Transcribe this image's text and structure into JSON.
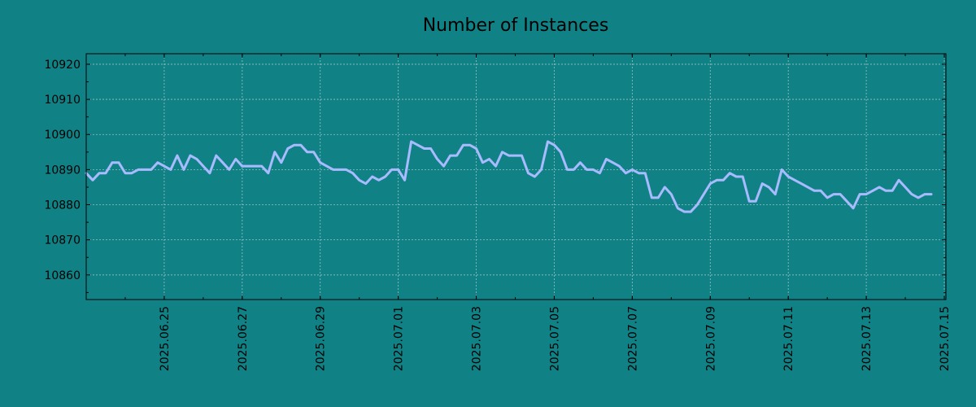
{
  "colors": {
    "background": "#108286",
    "series": "#a9bbff",
    "grid": "#bfd9da"
  },
  "chart_data": {
    "type": "line",
    "title": "Number of Instances",
    "xlabel": "",
    "ylabel": "",
    "x_range": [
      "2025-06-23",
      "2025-07-15T01:00"
    ],
    "ylim": [
      10853,
      10923
    ],
    "yticks": [
      10860,
      10870,
      10880,
      10890,
      10900,
      10910,
      10920
    ],
    "xticks": [
      "2025.06.25",
      "2025.06.27",
      "2025.06.29",
      "2025.07.01",
      "2025.07.03",
      "2025.07.05",
      "2025.07.07",
      "2025.07.09",
      "2025.07.11",
      "2025.07.13",
      "2025.07.15"
    ],
    "grid": true,
    "legend": "none",
    "series": [
      {
        "points": [
          [
            "2025-06-23T00:00",
            10889
          ],
          [
            "2025-06-23T04:00",
            10887
          ],
          [
            "2025-06-23T08:00",
            10889
          ],
          [
            "2025-06-23T12:00",
            10889
          ],
          [
            "2025-06-23T16:00",
            10892
          ],
          [
            "2025-06-23T20:00",
            10892
          ],
          [
            "2025-06-24T00:00",
            10889
          ],
          [
            "2025-06-24T04:00",
            10889
          ],
          [
            "2025-06-24T08:00",
            10890
          ],
          [
            "2025-06-24T12:00",
            10890
          ],
          [
            "2025-06-24T16:00",
            10890
          ],
          [
            "2025-06-24T20:00",
            10892
          ],
          [
            "2025-06-25T00:00",
            10891
          ],
          [
            "2025-06-25T04:00",
            10890
          ],
          [
            "2025-06-25T08:00",
            10894
          ],
          [
            "2025-06-25T12:00",
            10890
          ],
          [
            "2025-06-25T16:00",
            10894
          ],
          [
            "2025-06-25T20:00",
            10893
          ],
          [
            "2025-06-26T00:00",
            10891
          ],
          [
            "2025-06-26T04:00",
            10889
          ],
          [
            "2025-06-26T08:00",
            10894
          ],
          [
            "2025-06-26T12:00",
            10892
          ],
          [
            "2025-06-26T16:00",
            10890
          ],
          [
            "2025-06-26T20:00",
            10893
          ],
          [
            "2025-06-27T00:00",
            10891
          ],
          [
            "2025-06-27T04:00",
            10891
          ],
          [
            "2025-06-27T08:00",
            10891
          ],
          [
            "2025-06-27T12:00",
            10891
          ],
          [
            "2025-06-27T16:00",
            10889
          ],
          [
            "2025-06-27T20:00",
            10895
          ],
          [
            "2025-06-28T00:00",
            10892
          ],
          [
            "2025-06-28T04:00",
            10896
          ],
          [
            "2025-06-28T08:00",
            10897
          ],
          [
            "2025-06-28T12:00",
            10897
          ],
          [
            "2025-06-28T16:00",
            10895
          ],
          [
            "2025-06-28T20:00",
            10895
          ],
          [
            "2025-06-29T00:00",
            10892
          ],
          [
            "2025-06-29T04:00",
            10891
          ],
          [
            "2025-06-29T08:00",
            10890
          ],
          [
            "2025-06-29T12:00",
            10890
          ],
          [
            "2025-06-29T16:00",
            10890
          ],
          [
            "2025-06-29T20:00",
            10889
          ],
          [
            "2025-06-30T00:00",
            10887
          ],
          [
            "2025-06-30T04:00",
            10886
          ],
          [
            "2025-06-30T08:00",
            10888
          ],
          [
            "2025-06-30T12:00",
            10887
          ],
          [
            "2025-06-30T16:00",
            10888
          ],
          [
            "2025-06-30T20:00",
            10890
          ],
          [
            "2025-07-01T00:00",
            10890
          ],
          [
            "2025-07-01T04:00",
            10887
          ],
          [
            "2025-07-01T08:00",
            10898
          ],
          [
            "2025-07-01T12:00",
            10897
          ],
          [
            "2025-07-01T16:00",
            10896
          ],
          [
            "2025-07-01T20:00",
            10896
          ],
          [
            "2025-07-02T00:00",
            10893
          ],
          [
            "2025-07-02T04:00",
            10891
          ],
          [
            "2025-07-02T08:00",
            10894
          ],
          [
            "2025-07-02T12:00",
            10894
          ],
          [
            "2025-07-02T16:00",
            10897
          ],
          [
            "2025-07-02T20:00",
            10897
          ],
          [
            "2025-07-03T00:00",
            10896
          ],
          [
            "2025-07-03T04:00",
            10892
          ],
          [
            "2025-07-03T08:00",
            10893
          ],
          [
            "2025-07-03T12:00",
            10891
          ],
          [
            "2025-07-03T16:00",
            10895
          ],
          [
            "2025-07-03T20:00",
            10894
          ],
          [
            "2025-07-04T00:00",
            10894
          ],
          [
            "2025-07-04T04:00",
            10894
          ],
          [
            "2025-07-04T08:00",
            10889
          ],
          [
            "2025-07-04T12:00",
            10888
          ],
          [
            "2025-07-04T16:00",
            10890
          ],
          [
            "2025-07-04T20:00",
            10898
          ],
          [
            "2025-07-05T00:00",
            10897
          ],
          [
            "2025-07-05T04:00",
            10895
          ],
          [
            "2025-07-05T08:00",
            10890
          ],
          [
            "2025-07-05T12:00",
            10890
          ],
          [
            "2025-07-05T16:00",
            10892
          ],
          [
            "2025-07-05T20:00",
            10890
          ],
          [
            "2025-07-06T00:00",
            10890
          ],
          [
            "2025-07-06T04:00",
            10889
          ],
          [
            "2025-07-06T08:00",
            10893
          ],
          [
            "2025-07-06T12:00",
            10892
          ],
          [
            "2025-07-06T16:00",
            10891
          ],
          [
            "2025-07-06T20:00",
            10889
          ],
          [
            "2025-07-07T00:00",
            10890
          ],
          [
            "2025-07-07T04:00",
            10889
          ],
          [
            "2025-07-07T08:00",
            10889
          ],
          [
            "2025-07-07T12:00",
            10882
          ],
          [
            "2025-07-07T16:00",
            10882
          ],
          [
            "2025-07-07T20:00",
            10885
          ],
          [
            "2025-07-08T00:00",
            10883
          ],
          [
            "2025-07-08T04:00",
            10879
          ],
          [
            "2025-07-08T08:00",
            10878
          ],
          [
            "2025-07-08T12:00",
            10878
          ],
          [
            "2025-07-08T16:00",
            10880
          ],
          [
            "2025-07-08T20:00",
            10883
          ],
          [
            "2025-07-09T00:00",
            10886
          ],
          [
            "2025-07-09T04:00",
            10887
          ],
          [
            "2025-07-09T08:00",
            10887
          ],
          [
            "2025-07-09T12:00",
            10889
          ],
          [
            "2025-07-09T16:00",
            10888
          ],
          [
            "2025-07-09T20:00",
            10888
          ],
          [
            "2025-07-10T00:00",
            10881
          ],
          [
            "2025-07-10T04:00",
            10881
          ],
          [
            "2025-07-10T08:00",
            10886
          ],
          [
            "2025-07-10T12:00",
            10885
          ],
          [
            "2025-07-10T16:00",
            10883
          ],
          [
            "2025-07-10T20:00",
            10890
          ],
          [
            "2025-07-11T00:00",
            10888
          ],
          [
            "2025-07-11T04:00",
            10887
          ],
          [
            "2025-07-11T08:00",
            10886
          ],
          [
            "2025-07-11T12:00",
            10885
          ],
          [
            "2025-07-11T16:00",
            10884
          ],
          [
            "2025-07-11T20:00",
            10884
          ],
          [
            "2025-07-12T00:00",
            10882
          ],
          [
            "2025-07-12T04:00",
            10883
          ],
          [
            "2025-07-12T08:00",
            10883
          ],
          [
            "2025-07-12T12:00",
            10881
          ],
          [
            "2025-07-12T16:00",
            10879
          ],
          [
            "2025-07-12T20:00",
            10883
          ],
          [
            "2025-07-13T00:00",
            10883
          ],
          [
            "2025-07-13T04:00",
            10884
          ],
          [
            "2025-07-13T08:00",
            10885
          ],
          [
            "2025-07-13T12:00",
            10884
          ],
          [
            "2025-07-13T16:00",
            10884
          ],
          [
            "2025-07-13T20:00",
            10887
          ],
          [
            "2025-07-14T00:00",
            10885
          ],
          [
            "2025-07-14T04:00",
            10883
          ],
          [
            "2025-07-14T08:00",
            10882
          ],
          [
            "2025-07-14T12:00",
            10883
          ],
          [
            "2025-07-14T16:00",
            10883
          ]
        ]
      }
    ]
  }
}
